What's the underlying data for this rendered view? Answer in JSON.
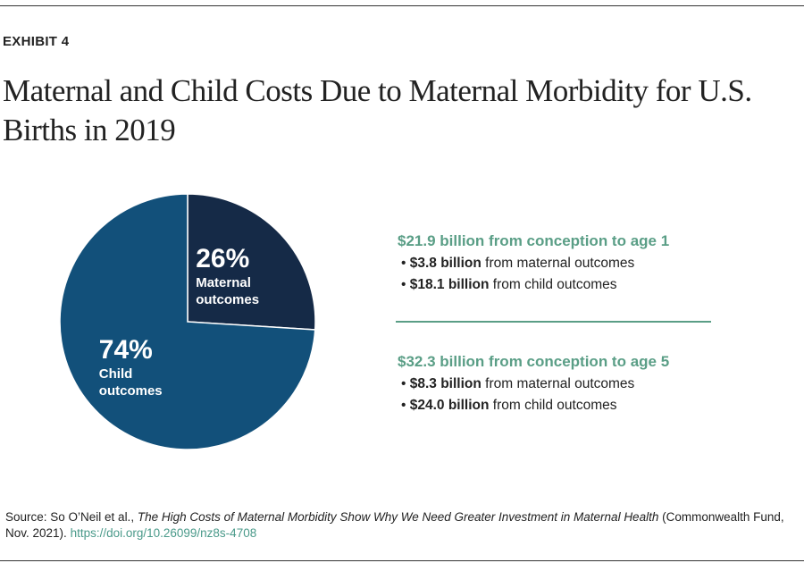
{
  "exhibit": "EXHIBIT 4",
  "chart_data": {
    "type": "pie",
    "title": "Maternal and Child Costs Due to Maternal Morbidity for U.S. Births in 2019",
    "categories": [
      "Maternal outcomes",
      "Child outcomes"
    ],
    "values": [
      26,
      74
    ],
    "value_labels": [
      "26%",
      "74%"
    ],
    "colors": [
      "#152a47",
      "#12507a"
    ]
  },
  "summary": [
    {
      "heading": "$21.9 billion from conception to age 1",
      "items": [
        {
          "amount": "$3.8 billion",
          "text": "from maternal outcomes"
        },
        {
          "amount": "$18.1 billion",
          "text": "from child outcomes"
        }
      ]
    },
    {
      "heading": "$32.3 billion from conception to age 5",
      "items": [
        {
          "amount": "$8.3 billion",
          "text": "from maternal outcomes"
        },
        {
          "amount": "$24.0 billion",
          "text": "from child outcomes"
        }
      ]
    }
  ],
  "source": {
    "prefix": "Source: So O’Neil et al.,",
    "title": "The High Costs of Maternal Morbidity Show Why We Need Greater Investment in Maternal Health",
    "suffix": "(Commonwealth Fund, Nov. 2021).",
    "link": "https://doi.org/10.26099/nz8s-4708"
  }
}
